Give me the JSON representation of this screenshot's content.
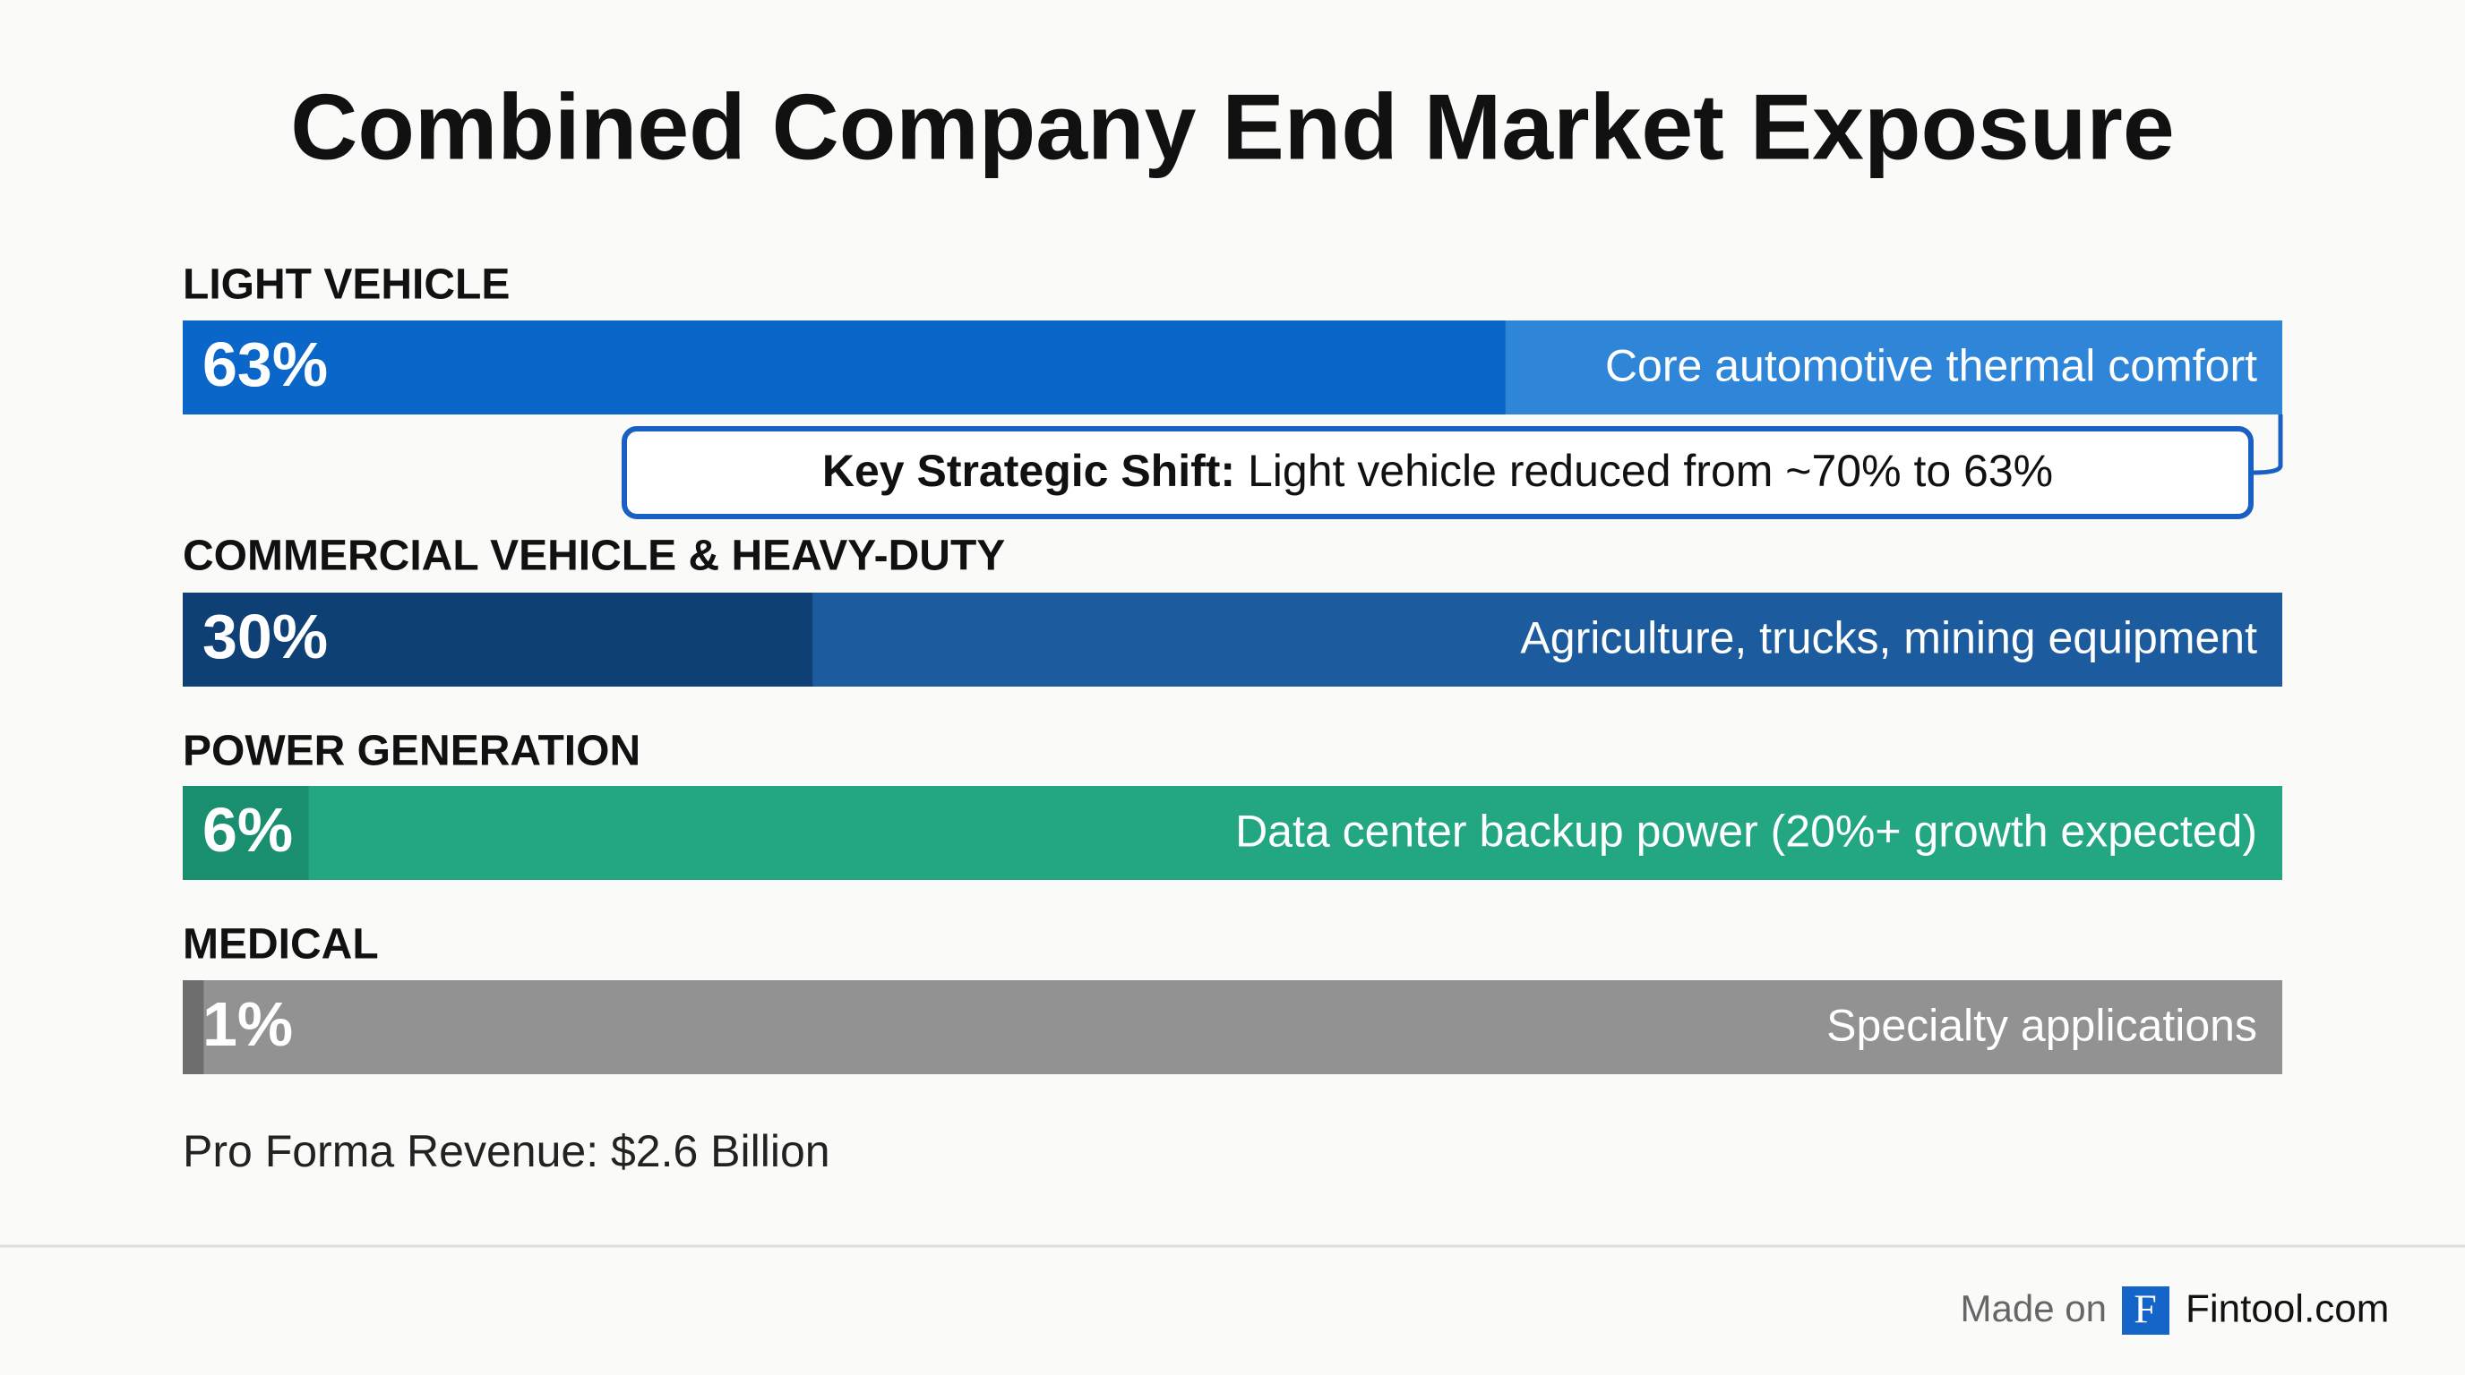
{
  "chart_data": {
    "type": "bar",
    "orientation": "horizontal",
    "title": "Combined Company End Market Exposure",
    "categories": [
      "LIGHT VEHICLE",
      "COMMERCIAL VEHICLE & HEAVY-DUTY",
      "POWER GENERATION",
      "MEDICAL"
    ],
    "values": [
      63,
      30,
      6,
      1
    ],
    "value_labels": [
      "63%",
      "30%",
      "6%",
      "1%"
    ],
    "descriptions": [
      "Core automotive thermal comfort",
      "Agriculture, trucks, mining equipment",
      "Data center backup power (20%+ growth expected)",
      "Specialty applications"
    ],
    "colors": [
      "#0a66c8",
      "#0e3f75",
      "#1a8f6f",
      "#6e6e6e"
    ],
    "track_colors": [
      "#2f86d8",
      "#1c5c9e",
      "#23a682",
      "#929292"
    ],
    "xlim": [
      0,
      100
    ],
    "annotation": {
      "label": "Key Strategic Shift:",
      "text": "Light vehicle reduced from ~70% to 63%",
      "color": "#1a5fc4"
    },
    "footnote": "Pro Forma Revenue: $2.6 Billion"
  },
  "footer": {
    "prefix": "Made on",
    "logo": "F",
    "brand": "Fintool.com"
  }
}
